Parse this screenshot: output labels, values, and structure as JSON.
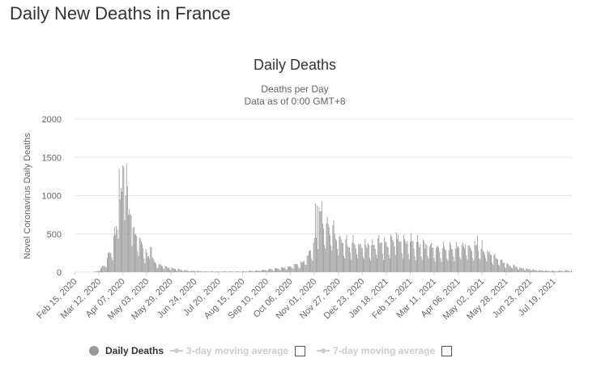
{
  "page": {
    "title": "Daily New Deaths in France"
  },
  "legend": {
    "daily": "Daily Deaths",
    "ma3": "3-day moving average",
    "ma7": "7-day moving average"
  },
  "colors": {
    "bar": "#999999",
    "grid": "#e6e6e6",
    "text": "#333333",
    "axis_text": "#666666"
  },
  "chart_data": {
    "type": "bar",
    "title": "Daily Deaths",
    "subtitle_lines": [
      "Deaths per Day",
      "Data as of 0:00 GMT+8"
    ],
    "ylabel": "Novel Coronavirus Daily Deaths",
    "ylim": [
      0,
      2000
    ],
    "yticks": [
      0,
      500,
      1000,
      1500,
      2000
    ],
    "grid": true,
    "x_start": "2020-02-15",
    "x_end": "2021-08-07",
    "x_ticks": [
      "Feb 15, 2020",
      "Mar 12, 2020",
      "Apr 07, 2020",
      "May 03, 2020",
      "May 29, 2020",
      "Jun 24, 2020",
      "Jul 20, 2020",
      "Aug 15, 2020",
      "Sep 10, 2020",
      "Oct 06, 2020",
      "Nov 01, 2020",
      "Nov 27, 2020",
      "Dec 23, 2020",
      "Jan 18, 2021",
      "Feb 13, 2021",
      "Mar 11, 2021",
      "Apr 06, 2021",
      "May 02, 2021",
      "May 28, 2021",
      "Jun 23, 2021",
      "Jul 19, 2021"
    ],
    "series": [
      {
        "name": "Daily Deaths",
        "color": "#999999",
        "anchors": [
          [
            "2020-02-15",
            0
          ],
          [
            "2020-03-05",
            2
          ],
          [
            "2020-03-10",
            10
          ],
          [
            "2020-03-14",
            40
          ],
          [
            "2020-03-18",
            90
          ],
          [
            "2020-03-22",
            180
          ],
          [
            "2020-03-26",
            320
          ],
          [
            "2020-03-30",
            480
          ],
          [
            "2020-04-02",
            700
          ],
          [
            "2020-04-05",
            1050
          ],
          [
            "2020-04-08",
            1150
          ],
          [
            "2020-04-11",
            900
          ],
          [
            "2020-04-15",
            700
          ],
          [
            "2020-04-20",
            520
          ],
          [
            "2020-04-25",
            380
          ],
          [
            "2020-04-30",
            280
          ],
          [
            "2020-05-05",
            200
          ],
          [
            "2020-05-10",
            140
          ],
          [
            "2020-05-15",
            100
          ],
          [
            "2020-05-20",
            75
          ],
          [
            "2020-05-27",
            55
          ],
          [
            "2020-06-05",
            35
          ],
          [
            "2020-06-15",
            20
          ],
          [
            "2020-06-30",
            12
          ],
          [
            "2020-07-20",
            8
          ],
          [
            "2020-08-15",
            10
          ],
          [
            "2020-09-01",
            20
          ],
          [
            "2020-09-20",
            45
          ],
          [
            "2020-10-06",
            70
          ],
          [
            "2020-10-18",
            120
          ],
          [
            "2020-10-26",
            220
          ],
          [
            "2020-11-01",
            380
          ],
          [
            "2020-11-06",
            600
          ],
          [
            "2020-11-12",
            620
          ],
          [
            "2020-11-18",
            560
          ],
          [
            "2020-11-26",
            440
          ],
          [
            "2020-12-05",
            380
          ],
          [
            "2020-12-15",
            350
          ],
          [
            "2020-12-25",
            330
          ],
          [
            "2021-01-05",
            340
          ],
          [
            "2021-01-18",
            380
          ],
          [
            "2021-02-01",
            400
          ],
          [
            "2021-02-13",
            380
          ],
          [
            "2021-02-25",
            340
          ],
          [
            "2021-03-11",
            300
          ],
          [
            "2021-03-25",
            290
          ],
          [
            "2021-04-06",
            310
          ],
          [
            "2021-04-15",
            340
          ],
          [
            "2021-04-25",
            330
          ],
          [
            "2021-05-02",
            300
          ],
          [
            "2021-05-12",
            220
          ],
          [
            "2021-05-20",
            150
          ],
          [
            "2021-05-28",
            110
          ],
          [
            "2021-06-10",
            60
          ],
          [
            "2021-06-23",
            35
          ],
          [
            "2021-07-05",
            20
          ],
          [
            "2021-07-19",
            15
          ],
          [
            "2021-08-07",
            20
          ]
        ],
        "peaks": [
          [
            "2020-04-03",
            1350
          ],
          [
            "2020-04-05",
            1100
          ],
          [
            "2020-04-06",
            1050
          ],
          [
            "2020-04-07",
            1400
          ],
          [
            "2020-04-08",
            1380
          ],
          [
            "2020-04-10",
            1000
          ],
          [
            "2020-04-11",
            1420
          ],
          [
            "2020-04-13",
            750
          ],
          [
            "2020-04-15",
            760
          ],
          [
            "2020-04-16",
            740
          ],
          [
            "2020-05-07",
            330
          ],
          [
            "2020-05-08",
            330
          ],
          [
            "2020-11-02",
            900
          ],
          [
            "2020-11-04",
            870
          ],
          [
            "2020-11-06",
            850
          ],
          [
            "2020-11-09",
            930
          ],
          [
            "2021-01-29",
            520
          ],
          [
            "2021-04-27",
            480
          ]
        ]
      }
    ]
  }
}
